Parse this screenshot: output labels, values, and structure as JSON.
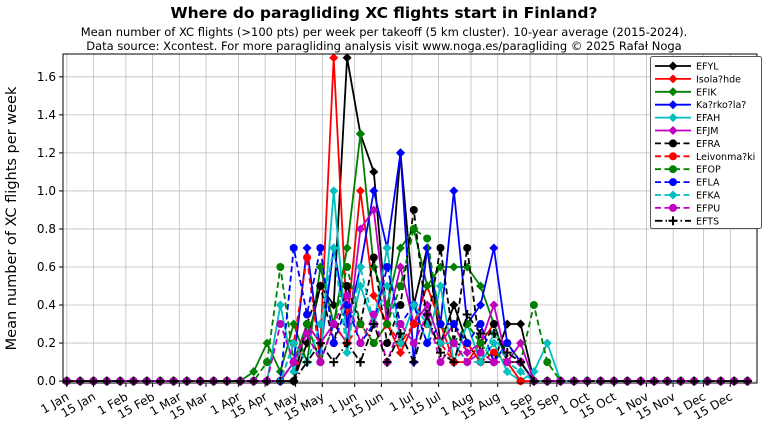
{
  "page": {
    "title": "Where do paragliding XC flights start in Finland?",
    "subtitle": "Mean number of XC flights (>100 pts) per week per takeoff (5 km cluster). 10-year average (2015-2024).",
    "source_line": "Data source: Xcontest. For more paragliding analysis visit www.noga.es/paragliding © 2025 Rafał Noga"
  },
  "chart_data": {
    "type": "line",
    "title": "Where do paragliding XC flights start in Finland?",
    "xlabel": "",
    "ylabel": "Mean number of XC flights per week",
    "ylim": [
      0,
      1.72
    ],
    "yticks": [
      0.0,
      0.2,
      0.4,
      0.6,
      0.8,
      1.0,
      1.2,
      1.4,
      1.6
    ],
    "grid": true,
    "legend_position": "upper right",
    "x_unit": "weekly data points (day of year = week_index * 7)",
    "x_tick_labels": [
      "1 Jan",
      "15 Jan",
      "1 Feb",
      "15 Feb",
      "1 Mar",
      "15 Mar",
      "1 Apr",
      "15 Apr",
      "1 May",
      "15 May",
      "1 Jun",
      "15 Jun",
      "1 Jul",
      "15 Jul",
      "1 Aug",
      "15 Aug",
      "1 Sep",
      "15 Sep",
      "1 Oct",
      "15 Oct",
      "1 Nov",
      "15 Nov",
      "1 Dec",
      "15 Dec"
    ],
    "x_tick_days": [
      0,
      14,
      31,
      45,
      59,
      73,
      90,
      104,
      120,
      134,
      151,
      165,
      181,
      195,
      212,
      226,
      243,
      257,
      273,
      287,
      304,
      318,
      334,
      348
    ],
    "series": [
      {
        "name": "EFYL",
        "color": "#000000",
        "line": "solid",
        "marker": "diamond",
        "values": [
          0,
          0,
          0,
          0,
          0,
          0,
          0,
          0,
          0,
          0,
          0,
          0,
          0,
          0,
          0,
          0,
          0,
          0,
          0.2,
          0.5,
          0.4,
          1.7,
          1.3,
          1.1,
          0.3,
          1.2,
          0.4,
          0.7,
          0.2,
          0.4,
          0.2,
          0.1,
          0.1,
          0.3,
          0.3,
          0,
          0,
          0,
          0,
          0,
          0,
          0,
          0,
          0,
          0,
          0,
          0,
          0,
          0,
          0,
          0,
          0
        ]
      },
      {
        "name": "Isola?hde",
        "color": "#ff0000",
        "line": "solid",
        "marker": "diamond",
        "values": [
          0,
          0,
          0,
          0,
          0,
          0,
          0,
          0,
          0,
          0,
          0,
          0,
          0,
          0,
          0,
          0,
          0,
          0,
          0.3,
          0.2,
          1.7,
          0.3,
          1.0,
          0.45,
          0.3,
          0.15,
          0.3,
          0.5,
          0.3,
          0.1,
          0.1,
          0.2,
          0.3,
          0.1,
          0,
          0,
          0,
          0,
          0,
          0,
          0,
          0,
          0,
          0,
          0,
          0,
          0,
          0,
          0,
          0,
          0,
          0
        ]
      },
      {
        "name": "EFIK",
        "color": "#008000",
        "line": "solid",
        "marker": "diamond",
        "values": [
          0,
          0,
          0,
          0,
          0,
          0,
          0,
          0,
          0,
          0,
          0,
          0,
          0,
          0,
          0.05,
          0.2,
          0.05,
          0.3,
          0.1,
          0.6,
          0.3,
          0.7,
          1.3,
          0.6,
          0.4,
          0.7,
          0.8,
          0.5,
          0.6,
          0.6,
          0.6,
          0.5,
          0.3,
          0.1,
          0.1,
          0,
          0,
          0,
          0,
          0,
          0,
          0,
          0,
          0,
          0,
          0,
          0,
          0,
          0,
          0,
          0,
          0
        ]
      },
      {
        "name": "Ka?rko?la?",
        "color": "#0000ff",
        "line": "solid",
        "marker": "diamond",
        "values": [
          0,
          0,
          0,
          0,
          0,
          0,
          0,
          0,
          0,
          0,
          0,
          0,
          0,
          0,
          0,
          0,
          0,
          0.1,
          0.7,
          0.15,
          0.7,
          0.3,
          0.6,
          1.0,
          0.7,
          1.2,
          0.1,
          0.7,
          0.3,
          1.0,
          0.3,
          0.4,
          0.7,
          0.2,
          0.1,
          0,
          0,
          0,
          0,
          0,
          0,
          0,
          0,
          0,
          0,
          0,
          0,
          0,
          0,
          0,
          0,
          0
        ]
      },
      {
        "name": "EFAH",
        "color": "#00bfbf",
        "line": "solid",
        "marker": "diamond",
        "values": [
          0,
          0,
          0,
          0,
          0,
          0,
          0,
          0,
          0,
          0,
          0,
          0,
          0,
          0,
          0,
          0,
          0.4,
          0.05,
          0.3,
          0.1,
          1.0,
          0.2,
          0.5,
          0.3,
          0.7,
          0.2,
          0.4,
          0.2,
          0.5,
          0.1,
          0.3,
          0.1,
          0.2,
          0.05,
          0,
          0.05,
          0.2,
          0,
          0,
          0,
          0,
          0,
          0,
          0,
          0,
          0,
          0,
          0,
          0,
          0,
          0,
          0
        ]
      },
      {
        "name": "EFJM",
        "color": "#bf00bf",
        "line": "solid",
        "marker": "diamond",
        "values": [
          0,
          0,
          0,
          0,
          0,
          0,
          0,
          0,
          0,
          0,
          0,
          0,
          0,
          0,
          0,
          0,
          0,
          0.1,
          0.3,
          0.2,
          0.3,
          0.2,
          0.8,
          0.9,
          0.3,
          0.6,
          0.3,
          0.4,
          0.2,
          0.3,
          0.15,
          0.2,
          0.4,
          0.1,
          0.2,
          0,
          0,
          0,
          0,
          0,
          0,
          0,
          0,
          0,
          0,
          0,
          0,
          0,
          0,
          0,
          0,
          0
        ]
      },
      {
        "name": "EFRA",
        "color": "#000000",
        "line": "dashed",
        "marker": "circle",
        "values": [
          0,
          0,
          0,
          0,
          0,
          0,
          0,
          0,
          0,
          0,
          0,
          0,
          0,
          0,
          0,
          0,
          0,
          0,
          0.3,
          0.5,
          0.2,
          0.5,
          0.3,
          0.65,
          0.2,
          0.4,
          0.9,
          0.3,
          0.7,
          0.2,
          0.7,
          0.15,
          0.3,
          0.1,
          0.1,
          0,
          0,
          0,
          0,
          0,
          0,
          0,
          0,
          0,
          0,
          0,
          0,
          0,
          0,
          0,
          0,
          0
        ]
      },
      {
        "name": "Leivonma?ki",
        "color": "#ff0000",
        "line": "dashed",
        "marker": "circle",
        "values": [
          0,
          0,
          0,
          0,
          0,
          0,
          0,
          0,
          0,
          0,
          0,
          0,
          0,
          0,
          0,
          0,
          0,
          0.2,
          0.65,
          0.1,
          0.3,
          0.2,
          0.3,
          0.2,
          0.3,
          0.2,
          0.3,
          0.3,
          0.2,
          0.1,
          0.2,
          0.1,
          0.15,
          0.1,
          0,
          0,
          0,
          0,
          0,
          0,
          0,
          0,
          0,
          0,
          0,
          0,
          0,
          0,
          0,
          0,
          0,
          0
        ]
      },
      {
        "name": "EFOP",
        "color": "#008000",
        "line": "dashed",
        "marker": "circle",
        "values": [
          0,
          0,
          0,
          0,
          0,
          0,
          0,
          0,
          0,
          0,
          0,
          0,
          0,
          0,
          0,
          0.1,
          0.6,
          0.1,
          0.3,
          0.1,
          0.3,
          0.6,
          0.3,
          0.2,
          0.3,
          0.5,
          0.8,
          0.75,
          0.3,
          0.2,
          0.3,
          0.2,
          0.1,
          0.2,
          0.1,
          0.4,
          0.1,
          0,
          0,
          0,
          0,
          0,
          0,
          0,
          0,
          0,
          0,
          0,
          0,
          0,
          0,
          0
        ]
      },
      {
        "name": "EFLA",
        "color": "#0000ff",
        "line": "dashed",
        "marker": "circle",
        "values": [
          0,
          0,
          0,
          0,
          0,
          0,
          0,
          0,
          0,
          0,
          0,
          0,
          0,
          0,
          0,
          0,
          0,
          0.7,
          0.35,
          0.7,
          0.2,
          0.4,
          0.2,
          0.3,
          0.6,
          0.3,
          0.4,
          0.2,
          0.3,
          0.3,
          0.2,
          0.3,
          0.1,
          0.2,
          0.1,
          0,
          0,
          0,
          0,
          0,
          0,
          0,
          0,
          0,
          0,
          0,
          0,
          0,
          0,
          0,
          0,
          0
        ]
      },
      {
        "name": "EFKA",
        "color": "#00bfbf",
        "line": "dashed",
        "marker": "diamond",
        "values": [
          0,
          0,
          0,
          0,
          0,
          0,
          0,
          0,
          0,
          0,
          0,
          0,
          0,
          0,
          0,
          0,
          0,
          0.2,
          0.1,
          0.3,
          0.7,
          0.15,
          0.6,
          0.3,
          0.5,
          0.2,
          0.4,
          0.3,
          0.2,
          0.2,
          0.1,
          0.1,
          0.25,
          0.1,
          0.05,
          0,
          0,
          0,
          0,
          0,
          0,
          0,
          0,
          0,
          0,
          0,
          0,
          0,
          0,
          0,
          0,
          0
        ]
      },
      {
        "name": "EFPU",
        "color": "#bf00bf",
        "line": "dashed",
        "marker": "circle",
        "values": [
          0,
          0,
          0,
          0,
          0,
          0,
          0,
          0,
          0,
          0,
          0,
          0,
          0,
          0,
          0,
          0,
          0.3,
          0.1,
          0.25,
          0.1,
          0.3,
          0.45,
          0.2,
          0.35,
          0.1,
          0.3,
          0.2,
          0.35,
          0.1,
          0.2,
          0.1,
          0.15,
          0.1,
          0.1,
          0.1,
          0,
          0,
          0,
          0,
          0,
          0,
          0,
          0,
          0,
          0,
          0,
          0,
          0,
          0,
          0,
          0,
          0
        ]
      },
      {
        "name": "EFTS",
        "color": "#000000",
        "line": "dashdot",
        "marker": "plus",
        "values": [
          0,
          0,
          0,
          0,
          0,
          0,
          0,
          0,
          0,
          0,
          0,
          0,
          0,
          0,
          0,
          0,
          0,
          0,
          0.1,
          0.2,
          0.1,
          0.2,
          0.1,
          0.3,
          0.1,
          0.25,
          0.1,
          0.35,
          0.15,
          0.1,
          0.35,
          0.25,
          0.25,
          0.15,
          0.1,
          0,
          0,
          0,
          0,
          0,
          0,
          0,
          0,
          0,
          0,
          0,
          0,
          0,
          0,
          0,
          0,
          0
        ]
      }
    ]
  }
}
